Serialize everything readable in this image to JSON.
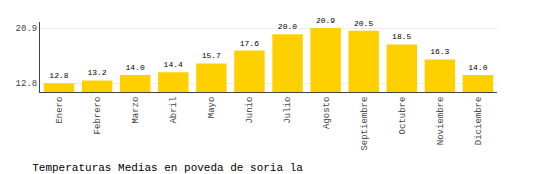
{
  "chart_data": {
    "type": "bar",
    "title": "Temperaturas Medias en poveda de soria la",
    "categories": [
      "Enero",
      "Febrero",
      "Marzo",
      "Abril",
      "Mayo",
      "Junio",
      "Julio",
      "Agosto",
      "Septiembre",
      "Octubre",
      "Noviembre",
      "Diciembre"
    ],
    "values": [
      12.8,
      13.2,
      14.0,
      14.4,
      15.7,
      17.6,
      20.0,
      20.9,
      20.5,
      18.5,
      16.3,
      14.0
    ],
    "color": "#FFD000",
    "ylim": [
      11.5,
      21.8
    ],
    "yticks": [
      12.8,
      20.9
    ],
    "grid": true,
    "data_labels": true
  }
}
